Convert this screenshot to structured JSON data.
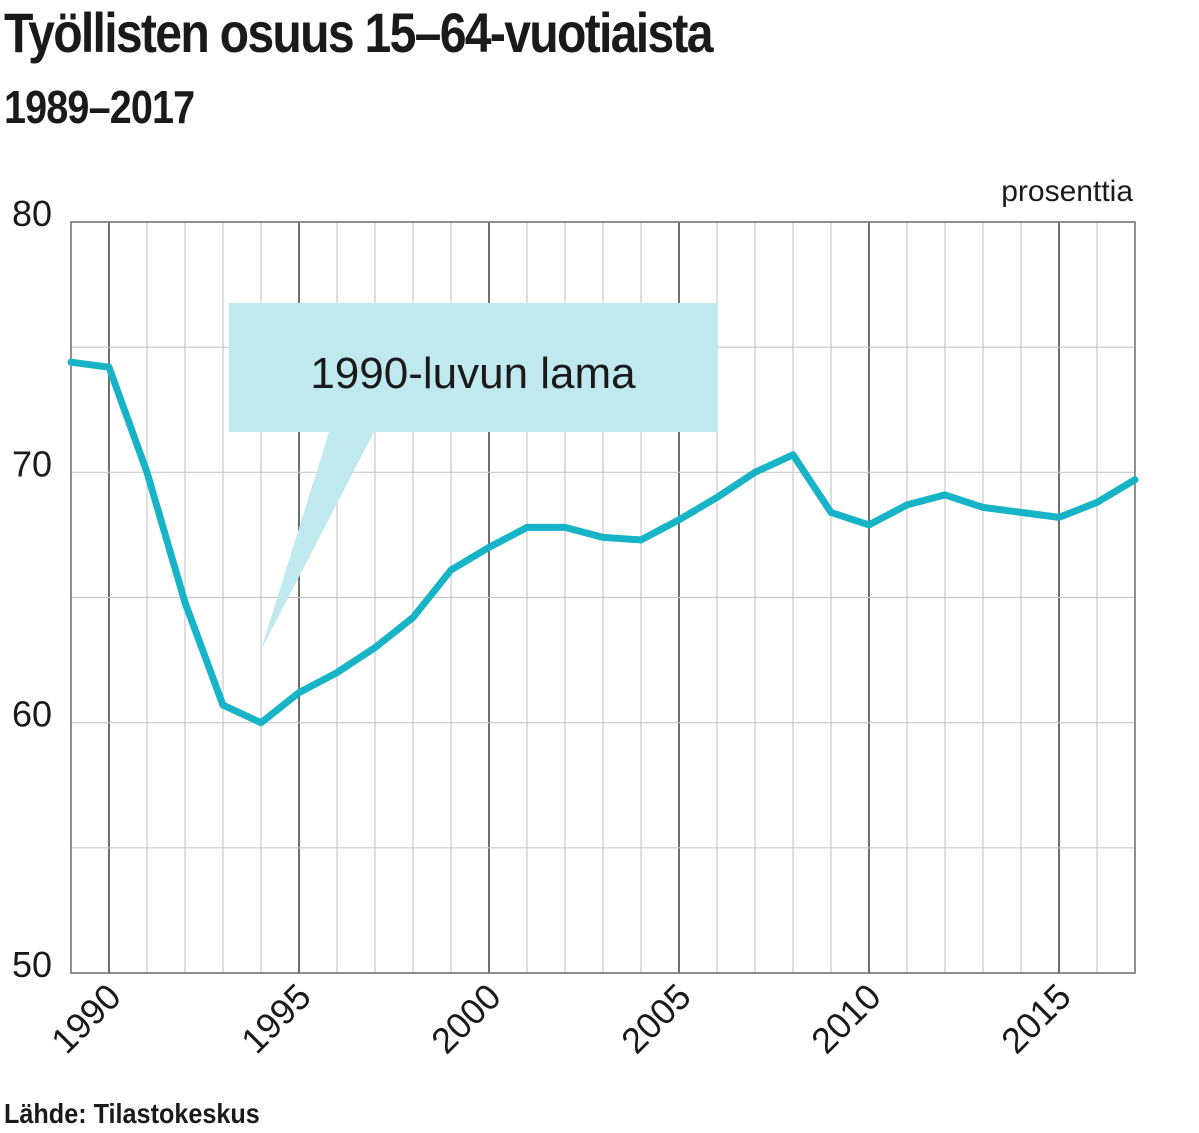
{
  "title": "Työllisten osuus 15–64-vuotiaista",
  "subtitle": "1989–2017",
  "source": "Lähde: Tilastokeskus",
  "colors": {
    "line": "#17b3c7",
    "annotation": "#bfe9ef",
    "grid": "#c8c8c8",
    "major_grid": "#6e6e6e",
    "text": "#1a1a1a"
  },
  "chart_data": {
    "type": "line",
    "title": "Työllisten osuus 15–64-vuotiaista",
    "subtitle": "1989–2017",
    "unit_label": "prosenttia",
    "xlim": [
      1989,
      2017
    ],
    "ylim": [
      50,
      80
    ],
    "x_ticks": [
      "1990",
      "1995",
      "2000",
      "2005",
      "2010",
      "2015"
    ],
    "y_ticks": [
      "50",
      "60",
      "70",
      "80"
    ],
    "grid": true,
    "x": [
      1989,
      1990,
      1991,
      1992,
      1993,
      1994,
      1995,
      1996,
      1997,
      1998,
      1999,
      2000,
      2001,
      2002,
      2003,
      2004,
      2005,
      2006,
      2007,
      2008,
      2009,
      2010,
      2011,
      2012,
      2013,
      2014,
      2015,
      2016,
      2017
    ],
    "values": [
      74.4,
      74.2,
      70.0,
      64.8,
      60.7,
      60.0,
      61.2,
      62.0,
      63.0,
      64.2,
      66.1,
      67.0,
      67.8,
      67.8,
      67.4,
      67.3,
      68.1,
      69.0,
      70.0,
      70.7,
      68.4,
      67.9,
      68.7,
      69.1,
      68.6,
      68.4,
      68.2,
      68.8,
      69.7
    ],
    "annotation": "1990-luvun lama",
    "annotation_year": 1994
  }
}
